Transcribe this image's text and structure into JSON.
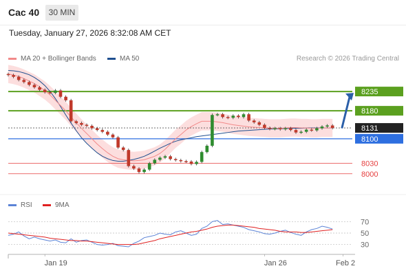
{
  "header": {
    "title": "Cac 40",
    "interval": "30 MIN"
  },
  "timestamp": "Tuesday, January 27, 2026 8:32:08 AM CET",
  "credit": "Research © 2026 Trading Central",
  "colors": {
    "support": "#2e6fe0",
    "resistance": "#5ba01f",
    "pivot_red": "#e53e3e",
    "ma20": "#f28a8a",
    "ma50": "#1f4f8f",
    "bollinger": "#fcdede",
    "candle_up": "#2f8c2f",
    "candle_down": "#c0392b",
    "arrow": "#2b5fa8",
    "rsi": "#5b83d6",
    "rsi_ma": "#e02020"
  },
  "chart_data": [
    {
      "type": "candlestick",
      "legend": [
        {
          "name": "MA 20 + Bollinger Bands",
          "color": "#f28a8a"
        },
        {
          "name": "MA 50",
          "color": "#1f4f8f"
        }
      ],
      "ylim": [
        7976,
        8300
      ],
      "levels": [
        {
          "value": 8235,
          "label": "8235",
          "kind": "resistance"
        },
        {
          "value": 8180,
          "label": "8180",
          "kind": "resistance"
        },
        {
          "value": 8131,
          "label": "8131",
          "kind": "current"
        },
        {
          "value": 8100,
          "label": "8100",
          "kind": "support"
        },
        {
          "value": 8030,
          "label": "8030",
          "kind": "pivot"
        },
        {
          "value": 8000,
          "label": "8000",
          "kind": "pivot"
        }
      ],
      "arrow": {
        "from_bar": 63,
        "from": 8130,
        "to": 8235
      },
      "x_ticks": [
        {
          "bar": 7,
          "label": "Jan 19"
        },
        {
          "bar": 49,
          "label": "Jan 26"
        },
        {
          "bar": 64,
          "label": "Feb 2"
        }
      ],
      "closes": [
        8282,
        8277,
        8268,
        8262,
        8254,
        8247,
        8240,
        8233,
        8231,
        8238,
        8220,
        8210,
        8150,
        8145,
        8140,
        8137,
        8130,
        8125,
        8120,
        8112,
        8104,
        8075,
        8068,
        8022,
        8015,
        8005,
        8012,
        8030,
        8040,
        8046,
        8050,
        8042,
        8039,
        8036,
        8035,
        8028,
        8034,
        8062,
        8080,
        8168,
        8170,
        8162,
        8160,
        8166,
        8162,
        8170,
        8152,
        8147,
        8140,
        8131,
        8128,
        8130,
        8127,
        8130,
        8125,
        8118,
        8120,
        8126,
        8124,
        8130,
        8135,
        8138,
        8131
      ],
      "ma20": [
        8285,
        8282,
        8278,
        8272,
        8265,
        8258,
        8248,
        8238,
        8225,
        8210,
        8195,
        8180,
        8162,
        8146,
        8130,
        8115,
        8100,
        8085,
        8072,
        8060,
        8050,
        8043,
        8040,
        8038,
        8037,
        8038,
        8040,
        8045,
        8050,
        8058,
        8070,
        8085,
        8100,
        8112,
        8125,
        8135,
        8143,
        8150,
        8150,
        8150,
        8148,
        8146,
        8143,
        8140,
        8138,
        8136,
        8134,
        8133,
        8132,
        8131,
        8130,
        8130,
        8130,
        8131,
        8132,
        8132,
        8131,
        8131,
        8130,
        8130,
        8131,
        8131,
        8131
      ],
      "ma50": [
        8295,
        8294,
        8292,
        8288,
        8283,
        8275,
        8265,
        8252,
        8235,
        8215,
        8192,
        8168,
        8145,
        8123,
        8103,
        8087,
        8073,
        8060,
        8050,
        8043,
        8038,
        8036,
        8036,
        8038,
        8041,
        8045,
        8050,
        8057,
        8065,
        8073,
        8080,
        8087,
        8093,
        8097,
        8100,
        8103,
        8106,
        8108,
        8110,
        8112,
        8114,
        8116,
        8118,
        8120,
        8122,
        8123,
        8124,
        8125,
        8126,
        8127,
        8128,
        8128,
        8129,
        8129,
        8130,
        8130,
        8130,
        8131,
        8131,
        8131,
        8131,
        8131,
        8131
      ]
    },
    {
      "type": "line",
      "series": [
        {
          "name": "RSI",
          "color": "#5b83d6"
        },
        {
          "name": "9MA",
          "color": "#e02020"
        }
      ],
      "ylim": [
        20,
        80
      ],
      "y_ticks": [
        {
          "value": 70,
          "label": "70"
        },
        {
          "value": 50,
          "label": "50"
        },
        {
          "value": 30,
          "label": "30"
        }
      ],
      "rsi": [
        46,
        48,
        52,
        45,
        40,
        43,
        40,
        38,
        36,
        38,
        34,
        33,
        40,
        34,
        37,
        38,
        34,
        30,
        29,
        30,
        32,
        28,
        27,
        26,
        32,
        36,
        42,
        44,
        46,
        50,
        48,
        47,
        52,
        54,
        50,
        46,
        48,
        58,
        62,
        70,
        72,
        65,
        66,
        64,
        62,
        60,
        56,
        54,
        52,
        49,
        48,
        50,
        53,
        55,
        51,
        48,
        46,
        52,
        56,
        58,
        62,
        60,
        57
      ],
      "rsi_ma": [
        50,
        49,
        48,
        47,
        46,
        45,
        44,
        43,
        41,
        40,
        39,
        38,
        37,
        37,
        36,
        36,
        35,
        34,
        33,
        32,
        31,
        30,
        30,
        30,
        30,
        31,
        33,
        35,
        37,
        40,
        42,
        44,
        46,
        48,
        50,
        52,
        53,
        55,
        57,
        60,
        62,
        63,
        64,
        64,
        63,
        62,
        61,
        60,
        58,
        57,
        56,
        55,
        53,
        52,
        52,
        52,
        51,
        51,
        52,
        53,
        54,
        55,
        56
      ]
    }
  ]
}
